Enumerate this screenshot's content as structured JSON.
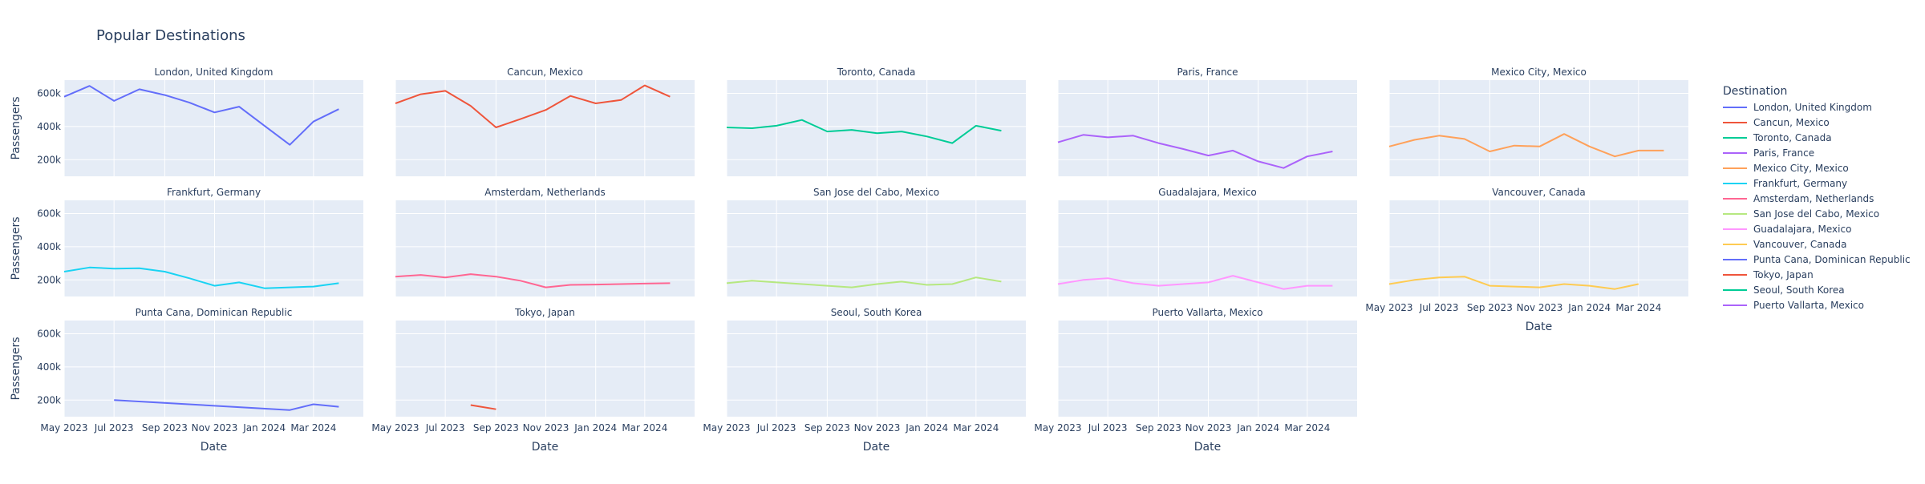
{
  "chart_data": {
    "type": "line",
    "title": "Popular Destinations",
    "xlabel": "Date",
    "ylabel": "Passengers",
    "y_range": [
      100000,
      680000
    ],
    "y_ticks": [
      200000,
      400000,
      600000
    ],
    "y_tick_labels": [
      "200k",
      "400k",
      "600k"
    ],
    "x_range": [
      "2023-05-01",
      "2024-05-01"
    ],
    "x_ticks": [
      "2023-05-01",
      "2023-07-01",
      "2023-09-01",
      "2023-11-01",
      "2024-01-01",
      "2024-03-01"
    ],
    "x_tick_labels": [
      "May 2023",
      "Jul 2023",
      "Sep 2023",
      "Nov 2023",
      "Jan 2024",
      "Mar 2024"
    ],
    "grid": true,
    "legend": {
      "title": "Destination",
      "position": "right"
    },
    "series": [
      {
        "name": "London, United Kingdom",
        "color": "#636efa",
        "x": [
          "2023-05-01",
          "2023-06-01",
          "2023-07-01",
          "2023-08-01",
          "2023-09-01",
          "2023-10-01",
          "2023-11-01",
          "2023-12-01",
          "2024-01-01",
          "2024-02-01",
          "2024-03-01",
          "2024-04-01"
        ],
        "y": [
          580000,
          645000,
          555000,
          625000,
          590000,
          545000,
          485000,
          520000,
          405000,
          290000,
          430000,
          505000
        ]
      },
      {
        "name": "Cancun, Mexico",
        "color": "#ef553b",
        "x": [
          "2023-05-01",
          "2023-06-01",
          "2023-07-01",
          "2023-08-01",
          "2023-09-01",
          "2023-10-01",
          "2023-11-01",
          "2023-12-01",
          "2024-01-01",
          "2024-02-01",
          "2024-03-01",
          "2024-04-01"
        ],
        "y": [
          540000,
          595000,
          615000,
          525000,
          395000,
          445000,
          500000,
          585000,
          540000,
          560000,
          648000,
          580000
        ]
      },
      {
        "name": "Toronto, Canada",
        "color": "#00cc96",
        "x": [
          "2023-05-01",
          "2023-06-01",
          "2023-07-01",
          "2023-08-01",
          "2023-09-01",
          "2023-10-01",
          "2023-11-01",
          "2023-12-01",
          "2024-01-01",
          "2024-02-01",
          "2024-03-01",
          "2024-04-01"
        ],
        "y": [
          395000,
          390000,
          405000,
          440000,
          370000,
          380000,
          360000,
          370000,
          340000,
          300000,
          405000,
          375000
        ]
      },
      {
        "name": "Paris, France",
        "color": "#ab63fa",
        "x": [
          "2023-05-01",
          "2023-06-01",
          "2023-07-01",
          "2023-08-01",
          "2023-09-01",
          "2023-10-01",
          "2023-11-01",
          "2023-12-01",
          "2024-01-01",
          "2024-02-01",
          "2024-03-01",
          "2024-04-01"
        ],
        "y": [
          305000,
          350000,
          335000,
          345000,
          300000,
          265000,
          225000,
          255000,
          190000,
          150000,
          220000,
          250000
        ]
      },
      {
        "name": "Mexico City, Mexico",
        "color": "#ffa15a",
        "x": [
          "2023-05-01",
          "2023-06-01",
          "2023-07-01",
          "2023-08-01",
          "2023-09-01",
          "2023-10-01",
          "2023-11-01",
          "2023-12-01",
          "2024-01-01",
          "2024-02-01",
          "2024-03-01",
          "2024-04-01"
        ],
        "y": [
          280000,
          320000,
          345000,
          325000,
          250000,
          285000,
          280000,
          355000,
          280000,
          220000,
          255000,
          255000
        ]
      },
      {
        "name": "Frankfurt, Germany",
        "color": "#19d3f3",
        "x": [
          "2023-05-01",
          "2023-06-01",
          "2023-07-01",
          "2023-08-01",
          "2023-09-01",
          "2023-10-01",
          "2023-11-01",
          "2023-12-01",
          "2024-01-01",
          "2024-02-01",
          "2024-03-01",
          "2024-04-01"
        ],
        "y": [
          250000,
          275000,
          268000,
          270000,
          250000,
          210000,
          165000,
          185000,
          150000,
          155000,
          160000,
          180000
        ]
      },
      {
        "name": "Amsterdam, Netherlands",
        "color": "#ff6692",
        "x": [
          "2023-05-01",
          "2023-06-01",
          "2023-07-01",
          "2023-08-01",
          "2023-09-01",
          "2023-10-01",
          "2023-11-01",
          "2023-12-01",
          "2024-01-01",
          "2024-02-01",
          "2024-03-01",
          "2024-04-01"
        ],
        "y": [
          220000,
          230000,
          215000,
          235000,
          220000,
          195000,
          155000,
          170000,
          172000,
          175000,
          178000,
          180000
        ]
      },
      {
        "name": "San Jose del Cabo, Mexico",
        "color": "#b6e880",
        "x": [
          "2023-05-01",
          "2023-06-01",
          "2023-07-01",
          "2023-08-01",
          "2023-09-01",
          "2023-10-01",
          "2023-11-01",
          "2023-12-01",
          "2024-01-01",
          "2024-02-01",
          "2024-03-01",
          "2024-04-01"
        ],
        "y": [
          180000,
          195000,
          185000,
          175000,
          165000,
          155000,
          175000,
          190000,
          170000,
          175000,
          215000,
          190000
        ]
      },
      {
        "name": "Guadalajara, Mexico",
        "color": "#ff97ff",
        "x": [
          "2023-05-01",
          "2023-06-01",
          "2023-07-01",
          "2023-08-01",
          "2023-09-01",
          "2023-10-01",
          "2023-11-01",
          "2023-12-01",
          "2024-01-01",
          "2024-02-01",
          "2024-03-01",
          "2024-04-01"
        ],
        "y": [
          175000,
          200000,
          210000,
          180000,
          165000,
          175000,
          185000,
          225000,
          185000,
          145000,
          165000,
          165000
        ]
      },
      {
        "name": "Vancouver, Canada",
        "color": "#fecb52",
        "x": [
          "2023-05-01",
          "2023-06-01",
          "2023-07-01",
          "2023-08-01",
          "2023-09-01",
          "2023-10-01",
          "2023-11-01",
          "2023-12-01",
          "2024-01-01",
          "2024-02-01",
          "2024-03-01"
        ],
        "y": [
          175000,
          200000,
          215000,
          220000,
          165000,
          160000,
          155000,
          175000,
          165000,
          145000,
          175000
        ]
      },
      {
        "name": "Punta Cana, Dominican Republic",
        "color": "#636efa",
        "x": [
          "2023-07-01",
          "2024-02-01",
          "2024-03-01",
          "2024-04-01"
        ],
        "y": [
          200000,
          140000,
          175000,
          160000
        ]
      },
      {
        "name": "Tokyo, Japan",
        "color": "#ef553b",
        "x": [
          "2023-08-01",
          "2023-09-01"
        ],
        "y": [
          170000,
          145000
        ]
      },
      {
        "name": "Seoul, South Korea",
        "color": "#00cc96",
        "x": [],
        "y": []
      },
      {
        "name": "Puerto Vallarta, Mexico",
        "color": "#ab63fa",
        "x": [],
        "y": []
      }
    ]
  }
}
